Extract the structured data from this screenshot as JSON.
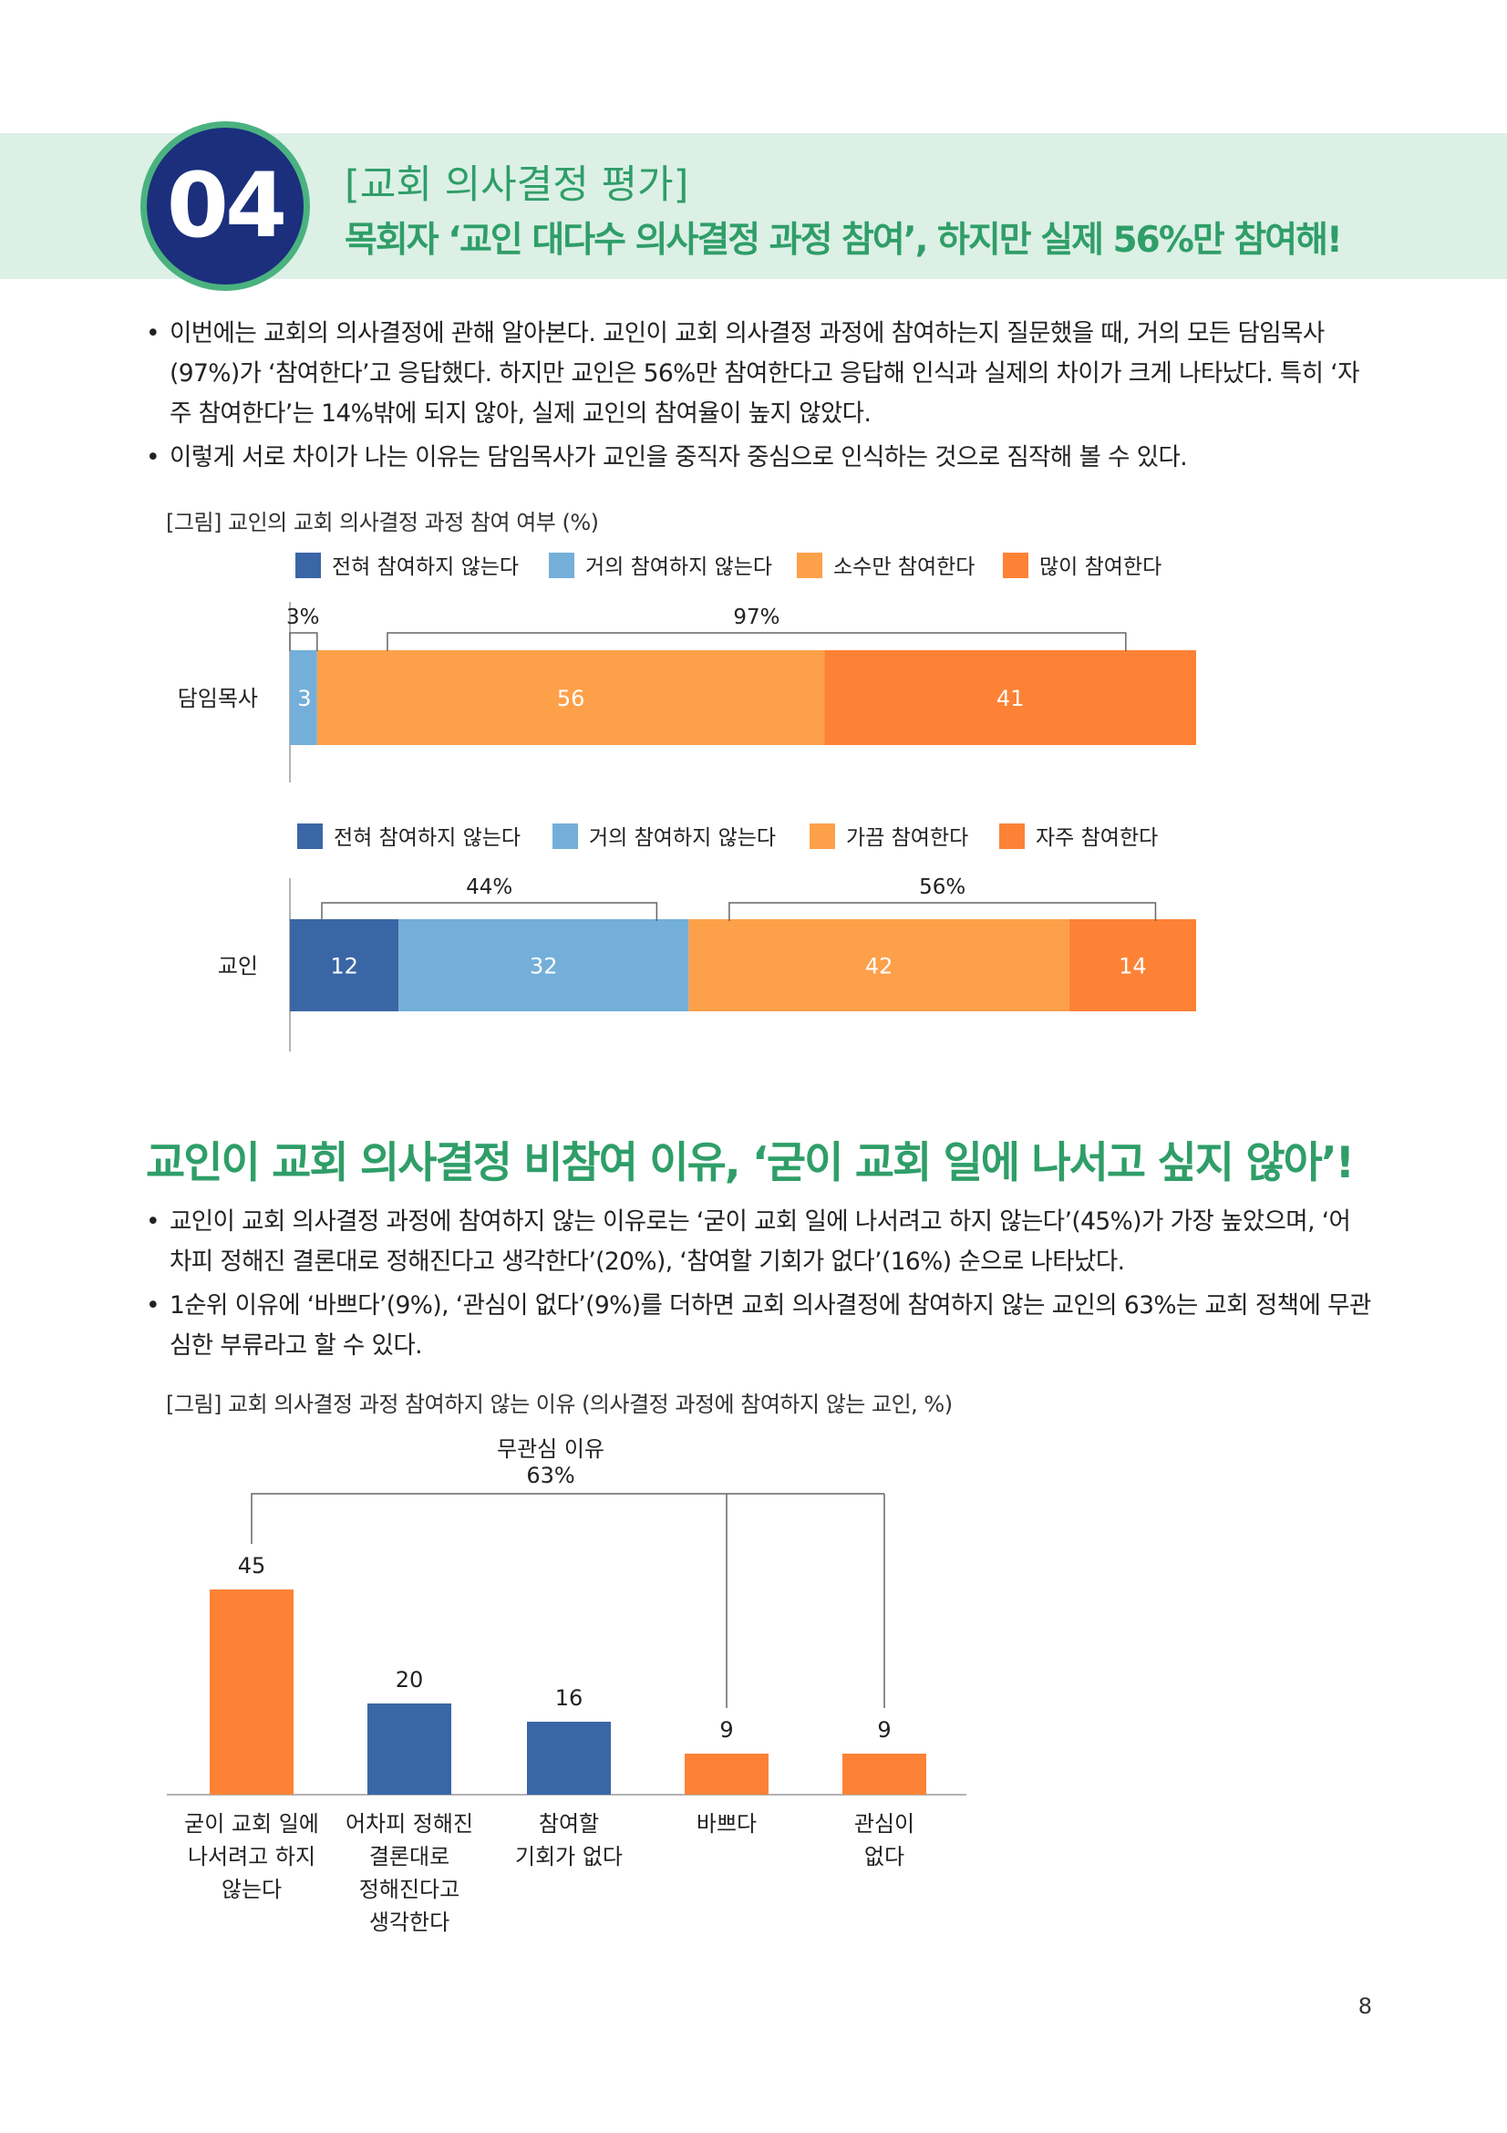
{
  "header": {
    "section_number": "04",
    "section_tag": "[교회 의사결정 평가]",
    "section_title": "목회자 ‘교인 대다수 의사결정 과정 참여’, 하지만 실제 56%만 참여해!"
  },
  "bullets_1": [
    "이번에는 교회의 의사결정에 관해 알아본다. 교인이 교회 의사결정 과정에 참여하는지 질문했을 때, 거의 모든 담임목사(97%)가 ‘참여한다’고 응답했다. 하지만 교인은 56%만 참여한다고 응답해 인식과 실제의 차이가 크게 나타났다. 특히 ‘자주 참여한다’는 14%밖에 되지 않아, 실제 교인의 참여율이 높지 않았다.",
    "이렇게 서로 차이가 나는 이유는 담임목사가 교인을 중직자 중심으로 인식하는 것으로 짐작해 볼 수 있다."
  ],
  "bullet_marker": "•",
  "figure_1_caption": "[그림] 교인의 교회 의사결정 과정 참여 여부 (%)",
  "sub_heading": "교인이 교회 의사결정 비참여 이유, ‘굳이 교회 일에 나서고 싶지 않아’!",
  "bullets_2": [
    "교인이 교회 의사결정 과정에 참여하지 않는 이유로는 ‘굳이 교회 일에 나서려고 하지 않는다’(45%)가 가장 높았으며, ‘어차피 정해진 결론대로 정해진다고 생각한다’(20%), ‘참여할 기회가 없다’(16%) 순으로 나타났다.",
    "1순위 이유에 ‘바쁘다’(9%), ‘관심이 없다’(9%)를 더하면 교회 의사결정에 참여하지 않는 교인의 63%는 교회 정책에 무관심한 부류라고 할 수 있다."
  ],
  "figure_2_caption": "[그림] 교회 의사결정 과정 참여하지 않는 이유 (의사결정 과정에 참여하지 않는 교인, %)",
  "page_number": "8",
  "colors": {
    "dark_blue": "#3a66a6",
    "light_blue": "#74afd9",
    "light_orange": "#fda04a",
    "orange": "#fd8236",
    "accent_green": "#2f9e68"
  },
  "chart_data": [
    {
      "type": "bar",
      "orientation": "horizontal",
      "stacked": true,
      "categories": [
        "담임목사"
      ],
      "series": [
        {
          "name": "전혀 참여하지 않는다",
          "color": "#3a66a6",
          "values": [
            0
          ],
          "label": ""
        },
        {
          "name": "거의 참여하지 않는다",
          "color": "#74afd9",
          "values": [
            3
          ],
          "label": "3"
        },
        {
          "name": "소수만 참여한다",
          "color": "#fda04a",
          "values": [
            56
          ],
          "label": "56"
        },
        {
          "name": "많이 참여한다",
          "color": "#fd8236",
          "values": [
            41
          ],
          "label": "41"
        }
      ],
      "annotations": [
        {
          "text": "3%",
          "from_series": 1,
          "to_series": 1
        },
        {
          "text": "97%",
          "from_series": 2,
          "to_series": 3
        }
      ],
      "xlim": [
        0,
        100
      ],
      "legend": "top"
    },
    {
      "type": "bar",
      "orientation": "horizontal",
      "stacked": true,
      "categories": [
        "교인"
      ],
      "series": [
        {
          "name": "전혀 참여하지 않는다",
          "color": "#3a66a6",
          "values": [
            12
          ],
          "label": "12"
        },
        {
          "name": "거의 참여하지 않는다",
          "color": "#74afd9",
          "values": [
            32
          ],
          "label": "32"
        },
        {
          "name": "가끔 참여한다",
          "color": "#fda04a",
          "values": [
            42
          ],
          "label": "42"
        },
        {
          "name": "자주 참여한다",
          "color": "#fd8236",
          "values": [
            14
          ],
          "label": "14"
        }
      ],
      "annotations": [
        {
          "text": "44%",
          "from_series": 0,
          "to_series": 1
        },
        {
          "text": "56%",
          "from_series": 2,
          "to_series": 3
        }
      ],
      "xlim": [
        0,
        100
      ],
      "legend": "top"
    },
    {
      "type": "bar",
      "orientation": "vertical",
      "categories": [
        "굳이 교회 일에\n나서려고 하지\n않는다",
        "어차피 정해진\n결론대로\n정해진다고\n생각한다",
        "참여할\n기회가 없다",
        "바쁘다",
        "관심이\n없다"
      ],
      "values": [
        45,
        20,
        16,
        9,
        9
      ],
      "colors": [
        "#fd8236",
        "#3a66a6",
        "#3a66a6",
        "#fd8236",
        "#fd8236"
      ],
      "group_annotation": {
        "lines": [
          "무관심 이유",
          "63%"
        ],
        "indices": [
          0,
          3,
          4
        ]
      },
      "ylim": [
        0,
        45
      ],
      "grid": false
    }
  ]
}
